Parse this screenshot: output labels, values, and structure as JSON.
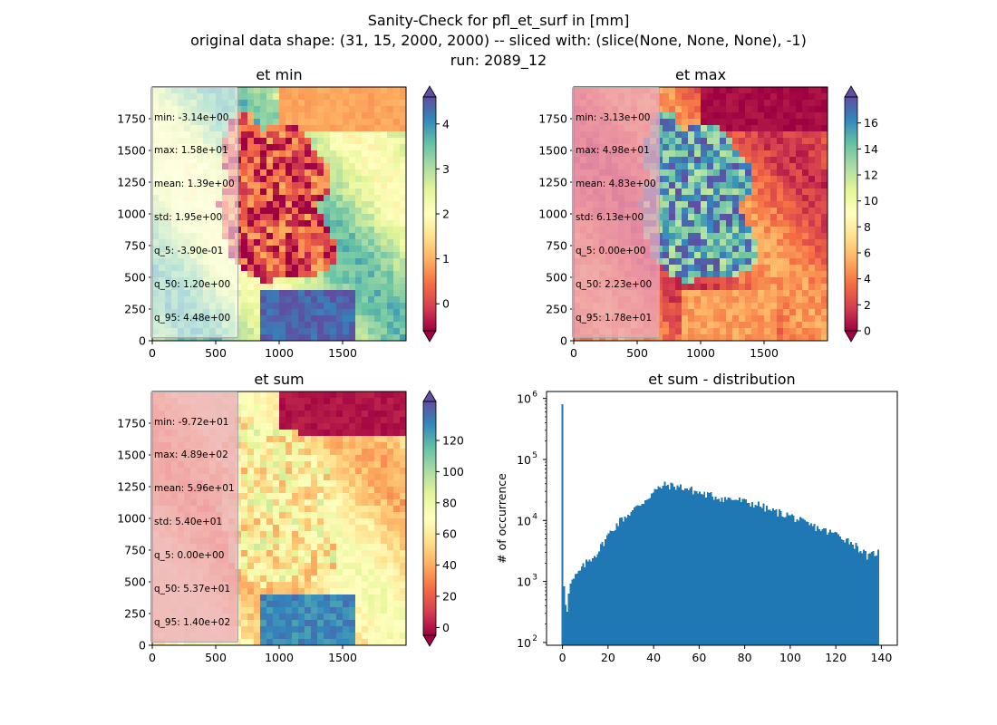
{
  "figure": {
    "title_lines": [
      "Sanity-Check for pfl_et_surf in [mm]",
      "original data shape: (31, 15, 2000, 2000) -- sliced with: (slice(None, None, None), -1)",
      "run: 2089_12"
    ]
  },
  "colors": {
    "hist_bar": "#1f77b4",
    "colormap": "Spectral",
    "colormap_stops": [
      "#9e0142",
      "#d53e4f",
      "#f46d43",
      "#fdae61",
      "#fee08b",
      "#ffffbf",
      "#e6f598",
      "#abdda4",
      "#66c2a5",
      "#3288bd",
      "#5e4fa2"
    ]
  },
  "chart_data": [
    {
      "type": "heatmap",
      "id": "et_min",
      "title": "et min",
      "x_ticks": [
        "0",
        "500",
        "1000",
        "1500"
      ],
      "y_ticks": [
        "0",
        "250",
        "500",
        "750",
        "1000",
        "1250",
        "1500",
        "1750"
      ],
      "xlim": [
        0,
        2000
      ],
      "ylim": [
        0,
        2000
      ],
      "colorbar": {
        "range": [
          -0.6,
          4.6
        ],
        "ticks": [
          0,
          1,
          2,
          3,
          4
        ],
        "tick_labels": [
          "0",
          "1",
          "2",
          "3",
          "4"
        ],
        "extend": "both"
      },
      "stats": [
        "min: -3.14e+00",
        "max: 1.58e+01",
        "mean: 1.39e+00",
        "std: 1.95e+00",
        "q_5: -3.90e-01",
        "q_50: 1.20e+00",
        "q_95: 4.48e+00"
      ],
      "stats_style": "light",
      "regions": {
        "outside_levels": [
          2.0,
          3.6
        ],
        "germany_level": 0.1,
        "south_level": 4.4,
        "north_level": 0.9
      }
    },
    {
      "type": "heatmap",
      "id": "et_max",
      "title": "et max",
      "x_ticks": [
        "0",
        "500",
        "1000",
        "1500"
      ],
      "y_ticks": [
        "0",
        "250",
        "500",
        "750",
        "1000",
        "1250",
        "1500",
        "1750"
      ],
      "xlim": [
        0,
        2000
      ],
      "ylim": [
        0,
        2000
      ],
      "colorbar": {
        "range": [
          0,
          18
        ],
        "ticks": [
          0,
          2,
          4,
          6,
          8,
          10,
          12,
          14,
          16
        ],
        "tick_labels": [
          "0",
          "2",
          "4",
          "6",
          "8",
          "10",
          "12",
          "14",
          "16"
        ],
        "extend": "both"
      },
      "stats": [
        "min: -3.13e+00",
        "max: 4.98e+01",
        "mean: 4.83e+00",
        "std: 6.13e+00",
        "q_5: 0.00e+00",
        "q_50: 2.23e+00",
        "q_95: 1.78e+01"
      ],
      "stats_style": "pink",
      "regions": {
        "outside_levels": [
          1.5,
          5.0
        ],
        "germany_level": 15.0,
        "south_level": 5.0,
        "north_level": 0.3
      }
    },
    {
      "type": "heatmap",
      "id": "et_sum",
      "title": "et sum",
      "x_ticks": [
        "0",
        "500",
        "1000",
        "1500"
      ],
      "y_ticks": [
        "0",
        "250",
        "500",
        "750",
        "1000",
        "1250",
        "1500",
        "1750"
      ],
      "xlim": [
        0,
        2000
      ],
      "ylim": [
        0,
        2000
      ],
      "colorbar": {
        "range": [
          -5,
          145
        ],
        "ticks": [
          0,
          20,
          40,
          60,
          80,
          100,
          120
        ],
        "tick_labels": [
          "0",
          "20",
          "40",
          "60",
          "80",
          "100",
          "120"
        ],
        "extend": "both"
      },
      "stats": [
        "min: -9.72e+01",
        "max: 4.89e+02",
        "mean: 5.96e+01",
        "std: 5.40e+01",
        "q_5: 0.00e+00",
        "q_50: 5.37e+01",
        "q_95: 1.40e+02"
      ],
      "stats_style": "pink",
      "regions": {
        "outside_levels": [
          40,
          75
        ],
        "germany_level": 65,
        "south_level": 130,
        "north_level": 0
      }
    },
    {
      "type": "bar",
      "id": "et_sum_hist",
      "title": "et sum - distribution",
      "ylabel": "# of occurrence",
      "xlabel": "",
      "x_ticks": [
        0,
        20,
        40,
        60,
        80,
        100,
        120,
        140
      ],
      "xlim": [
        -7,
        147
      ],
      "y_scale": "log",
      "ylim": [
        90,
        1300000
      ],
      "y_ticks": [
        100,
        1000,
        10000,
        100000,
        1000000
      ],
      "y_tick_labels": [
        [
          "10",
          "2"
        ],
        [
          "10",
          "3"
        ],
        [
          "10",
          "4"
        ],
        [
          "10",
          "5"
        ],
        [
          "10",
          "6"
        ]
      ],
      "bin_width": 0.7,
      "peaks": [
        {
          "x": 0,
          "value": 800000
        },
        {
          "x": 45,
          "value": 40000
        },
        {
          "x": 60,
          "value": 30000
        },
        {
          "x": 80,
          "value": 20000
        },
        {
          "x": 100,
          "value": 12000
        },
        {
          "x": 120,
          "value": 6000
        },
        {
          "x": 138,
          "value": 3000
        },
        {
          "x": 139,
          "value": 100
        }
      ],
      "envelope": [
        [
          0.35,
          900
        ],
        [
          1.5,
          300
        ],
        [
          3,
          900
        ],
        [
          6,
          1300
        ],
        [
          10,
          2000
        ],
        [
          15,
          3000
        ],
        [
          20,
          6000
        ],
        [
          25,
          10000
        ],
        [
          30,
          14000
        ],
        [
          35,
          20000
        ],
        [
          40,
          30000
        ],
        [
          44,
          38000
        ],
        [
          48,
          37000
        ],
        [
          52,
          35000
        ],
        [
          56,
          32000
        ],
        [
          60,
          28000
        ],
        [
          66,
          25000
        ],
        [
          70,
          23000
        ],
        [
          76,
          22000
        ],
        [
          80,
          20000
        ],
        [
          86,
          18000
        ],
        [
          90,
          15000
        ],
        [
          96,
          13000
        ],
        [
          100,
          12000
        ],
        [
          106,
          9000
        ],
        [
          110,
          8000
        ],
        [
          116,
          6500
        ],
        [
          120,
          6000
        ],
        [
          126,
          4500
        ],
        [
          130,
          3500
        ],
        [
          134,
          2500
        ],
        [
          137,
          3000
        ],
        [
          138.8,
          3000
        ]
      ]
    }
  ]
}
